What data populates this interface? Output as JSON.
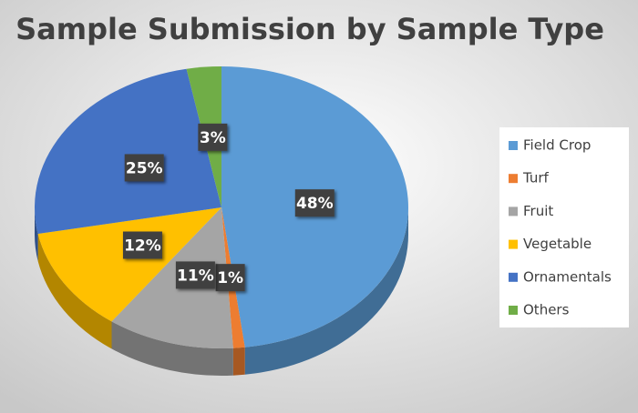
{
  "chart_data": {
    "type": "pie",
    "title": "Sample Submission by Sample Type",
    "categories": [
      "Field Crop",
      "Turf",
      "Fruit",
      "Vegetable",
      "Ornamentals",
      "Others"
    ],
    "values": [
      48,
      1,
      11,
      12,
      25,
      3
    ],
    "value_labels": [
      "48%",
      "1%",
      "11%",
      "12%",
      "25%",
      "3%"
    ],
    "colors": [
      "#5b9bd5",
      "#ed7d31",
      "#a5a5a5",
      "#ffc000",
      "#4472c4",
      "#70ad47"
    ],
    "legend": "right"
  }
}
